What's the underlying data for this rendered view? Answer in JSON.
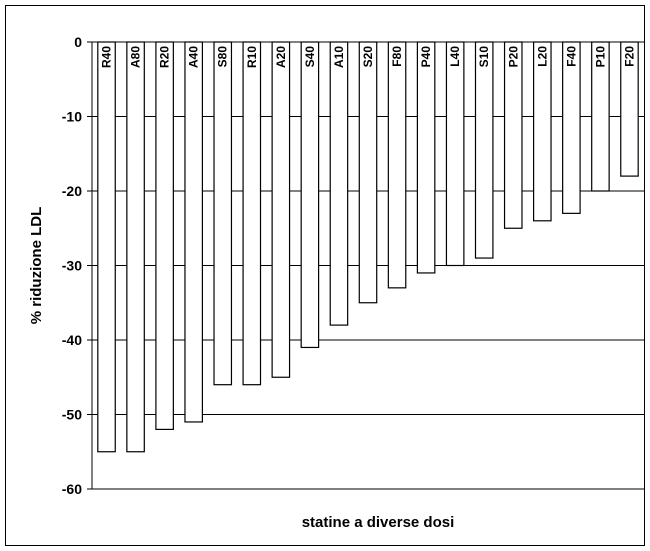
{
  "chart_data": {
    "type": "bar",
    "title": "",
    "xlabel": "statine a diverse dosi",
    "ylabel": "% riduzione LDL",
    "ylim": [
      -60,
      0
    ],
    "yticks": [
      0,
      -10,
      -20,
      -30,
      -40,
      -50,
      -60
    ],
    "grid": true,
    "legend": "none",
    "categories": [
      "R40",
      "A80",
      "R20",
      "A40",
      "S80",
      "R10",
      "A20",
      "S40",
      "A10",
      "S20",
      "F80",
      "P40",
      "L40",
      "S10",
      "P20",
      "L20",
      "F40",
      "P10",
      "F20"
    ],
    "values": [
      -55,
      -55,
      -52,
      -51,
      -46,
      -46,
      -45,
      -41,
      -38,
      -35,
      -33,
      -31,
      -30,
      -29,
      -25,
      -24,
      -23,
      -20,
      -18
    ],
    "bar_fill": "#ffffff",
    "bar_stroke": "#000000"
  }
}
